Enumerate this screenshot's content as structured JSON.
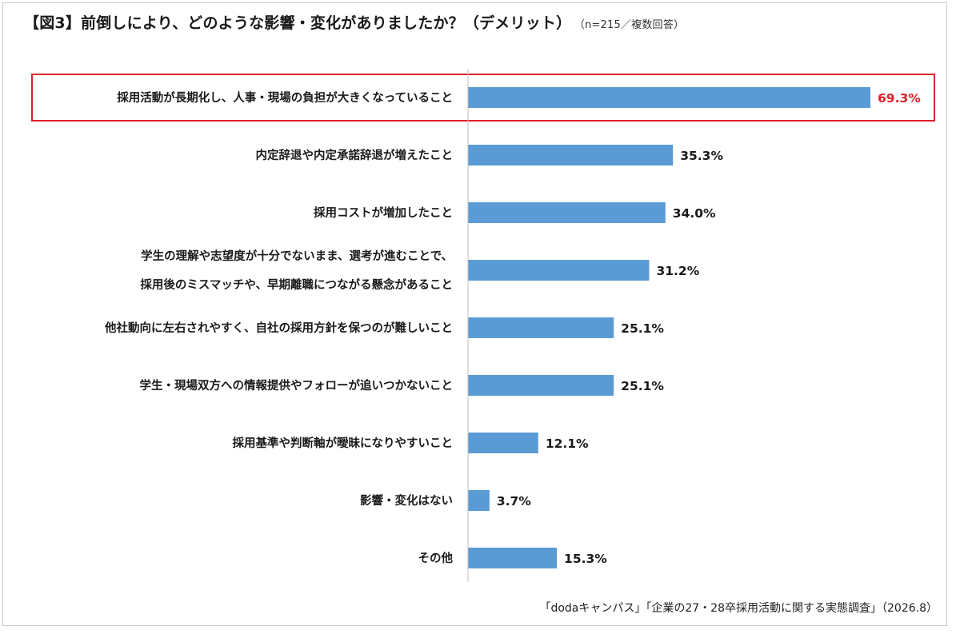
{
  "title": "【図3】前倒しにより、どのような影響・変化がありましたか？（デメリット）",
  "subtitle": "（n=215／複数回答）",
  "source": "「dodaキャンパス」「企業の27・28卒採用活動に関する実態調査」（2026.8）",
  "colors": {
    "bar": "#5b9bd5",
    "highlight": "#e0202a",
    "axis": "#bfbfbf"
  },
  "chart_data": {
    "type": "bar",
    "orientation": "horizontal",
    "categories": [
      "採用活動が長期化し、人事・現場の負担が大きくなっていること",
      "内定辞退や内定承諾辞退が増えたこと",
      "採用コストが増加したこと",
      "学生の理解や志望度が十分でないまま、選考が進むことで、|採用後のミスマッチや、早期離職につながる懸念があること",
      "他社動向に左右されやすく、自社の採用方針を保つのが難しいこと",
      "学生・現場双方への情報提供やフォローが追いつかないこと",
      "採用基準や判断軸が曖昧になりやすいこと",
      "影響・変化はない",
      "その他"
    ],
    "values": [
      69.3,
      35.3,
      34.0,
      31.2,
      25.1,
      25.1,
      12.1,
      3.7,
      15.3
    ],
    "value_labels": [
      "69.3%",
      "35.3%",
      "34.0%",
      "31.2%",
      "25.1%",
      "25.1%",
      "12.1%",
      "3.7%",
      "15.3%"
    ],
    "highlighted_index": 0,
    "xlim": [
      0,
      70
    ],
    "grid": false
  }
}
